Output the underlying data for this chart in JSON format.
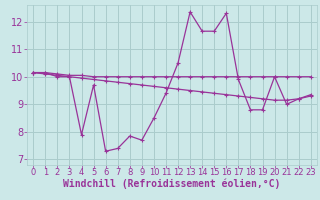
{
  "bg_color": "#cce8e8",
  "grid_color": "#aacccc",
  "line_color": "#993399",
  "xlabel": "Windchill (Refroidissement éolien,°C)",
  "xlim": [
    -0.5,
    23.5
  ],
  "ylim": [
    6.8,
    12.6
  ],
  "yticks": [
    7,
    8,
    9,
    10,
    11,
    12
  ],
  "xticks": [
    0,
    1,
    2,
    3,
    4,
    5,
    6,
    7,
    8,
    9,
    10,
    11,
    12,
    13,
    14,
    15,
    16,
    17,
    18,
    19,
    20,
    21,
    22,
    23
  ],
  "hours": [
    0,
    1,
    2,
    3,
    4,
    5,
    6,
    7,
    8,
    9,
    10,
    11,
    12,
    13,
    14,
    15,
    16,
    17,
    18,
    19,
    20,
    21,
    22,
    23
  ],
  "main_line": [
    10.15,
    10.15,
    10.0,
    10.0,
    7.9,
    9.7,
    7.3,
    7.4,
    7.85,
    7.7,
    8.5,
    9.4,
    10.5,
    12.35,
    11.65,
    11.65,
    12.3,
    9.9,
    8.8,
    8.8,
    10.0,
    9.0,
    9.2,
    9.35
  ],
  "flat_line": [
    10.15,
    10.15,
    10.1,
    10.05,
    10.05,
    10.0,
    10.0,
    10.0,
    10.0,
    10.0,
    10.0,
    10.0,
    10.0,
    10.0,
    10.0,
    10.0,
    10.0,
    10.0,
    10.0,
    10.0,
    10.0,
    10.0,
    10.0,
    10.0
  ],
  "slope_line": [
    10.15,
    10.1,
    10.05,
    10.0,
    9.95,
    9.9,
    9.85,
    9.8,
    9.75,
    9.7,
    9.65,
    9.6,
    9.55,
    9.5,
    9.45,
    9.4,
    9.35,
    9.3,
    9.25,
    9.2,
    9.15,
    9.15,
    9.2,
    9.3
  ],
  "tick_fontsize": 6,
  "xlabel_fontsize": 7
}
